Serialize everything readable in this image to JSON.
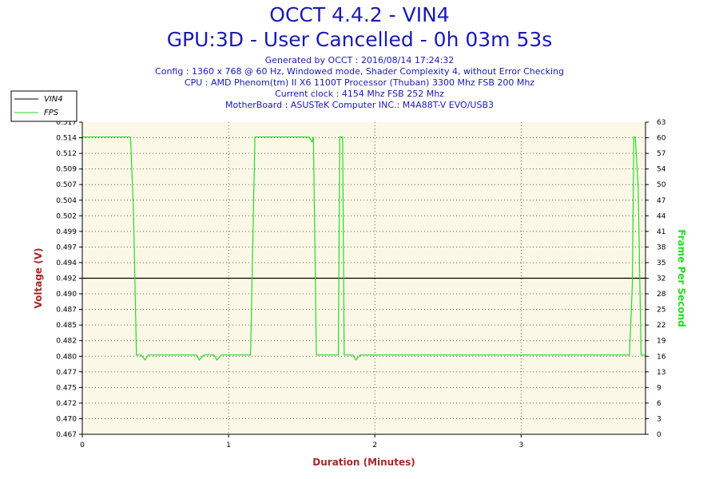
{
  "header": {
    "title": "OCCT 4.4.2 - VIN4",
    "subtitle": "GPU:3D - User Cancelled - 0h 03m 53s",
    "info": [
      "Generated by OCCT : 2016/08/14 17:24:32",
      "Config : 1360 x 768 @ 60 Hz, Windowed mode, Shader Complexity 4, without Error Checking",
      "CPU : AMD Phenom(tm) II X6 1100T Processor (Thuban) 3300 Mhz FSB 200 Mhz",
      "Current clock : 4154 Mhz FSB 252 Mhz",
      "MotherBoard : ASUSTeK Computer INC.: M4A88T-V EVO/USB3"
    ]
  },
  "colors": {
    "vin4": "#000000",
    "fps": "#22dd22",
    "plot_bg": "#fcf8e8",
    "left_axis_title": "#a52a2a",
    "right_axis_title": "#22dd22",
    "header": "#1a1ab4"
  },
  "chart_data": {
    "type": "line",
    "xlabel": "Duration (Minutes)",
    "ylabel": "Voltage (V)",
    "y2label": "Frame Per Second",
    "xlim": [
      0,
      3.85
    ],
    "ylim": [
      0.467,
      0.517
    ],
    "y2lim": [
      0,
      63
    ],
    "x_ticks": [
      "0",
      "1",
      "2",
      "3"
    ],
    "y_ticks": [
      "0.467",
      "0.470",
      "0.472",
      "0.475",
      "0.477",
      "0.480",
      "0.482",
      "0.485",
      "0.487",
      "0.490",
      "0.492",
      "0.494",
      "0.497",
      "0.499",
      "0.502",
      "0.504",
      "0.507",
      "0.509",
      "0.512",
      "0.514",
      "0.517"
    ],
    "y2_ticks": [
      "0",
      "3",
      "6",
      "9",
      "13",
      "16",
      "19",
      "22",
      "25",
      "28",
      "32",
      "35",
      "38",
      "41",
      "44",
      "47",
      "50",
      "54",
      "57",
      "60",
      "63"
    ],
    "legend": {
      "placement": "top-left"
    },
    "grid": true,
    "series": [
      {
        "name": "VIN4",
        "axis": "left",
        "x": [
          0,
          3.85
        ],
        "values": [
          0.492,
          0.492
        ]
      },
      {
        "name": "FPS",
        "axis": "right",
        "x": [
          0,
          0.33,
          0.35,
          0.37,
          0.4,
          0.43,
          0.45,
          0.5,
          0.6,
          0.7,
          0.78,
          0.8,
          0.83,
          0.86,
          0.9,
          0.92,
          0.95,
          0.98,
          1.0,
          1.05,
          1.1,
          1.15,
          1.18,
          1.2,
          1.25,
          1.3,
          1.4,
          1.5,
          1.55,
          1.57,
          1.58,
          1.6,
          1.62,
          1.65,
          1.7,
          1.75,
          1.76,
          1.77,
          1.78,
          1.79,
          1.81,
          1.85,
          1.87,
          1.9,
          2.0,
          2.2,
          2.4,
          2.6,
          2.8,
          3.0,
          3.2,
          3.4,
          3.6,
          3.7,
          3.74,
          3.76,
          3.77,
          3.78,
          3.8,
          3.82,
          3.85
        ],
        "values": [
          60,
          60,
          45,
          16,
          16,
          15,
          16,
          16,
          16,
          16,
          16,
          15,
          16,
          16,
          16,
          15,
          16,
          16,
          16,
          16,
          16,
          16,
          60,
          60,
          60,
          60,
          60,
          60,
          60,
          59,
          60,
          16,
          16,
          16,
          16,
          16,
          60,
          60,
          60,
          16,
          16,
          16,
          15,
          16,
          16,
          16,
          16,
          16,
          16,
          16,
          16,
          16,
          16,
          16,
          16,
          30,
          60,
          60,
          50,
          16,
          16
        ]
      }
    ]
  }
}
